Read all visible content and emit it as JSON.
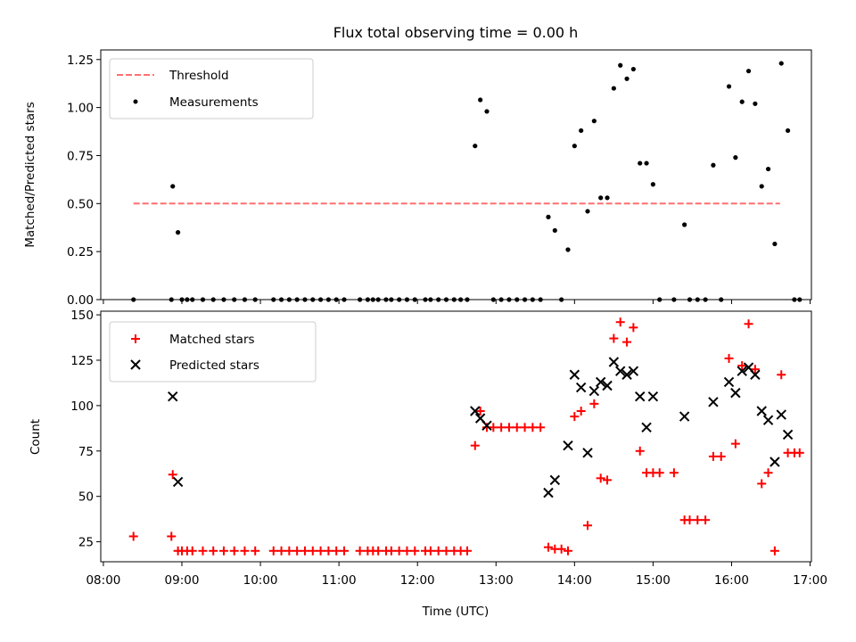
{
  "chart_data": [
    {
      "type": "scatter",
      "title": "Flux total observing time = 0.00 h",
      "ylabel": "Matched/Predicted stars",
      "xlabel": "",
      "xlim": [
        "08:00",
        "17:00"
      ],
      "ylim": [
        0,
        1.3
      ],
      "yticks": [
        "0.00",
        "0.25",
        "0.50",
        "0.75",
        "1.00",
        "1.25"
      ],
      "legend": "top-left",
      "threshold": {
        "name": "Threshold",
        "value": 0.5,
        "x_start": "08:23",
        "x_end": "16:37",
        "color": "#ff6f6f"
      },
      "series": [
        {
          "name": "Measurements",
          "color": "#000000",
          "points": [
            [
              "08:23",
              0
            ],
            [
              "08:52",
              0
            ],
            [
              "08:53",
              0.59
            ],
            [
              "08:57",
              0.35
            ],
            [
              "09:00",
              0
            ],
            [
              "09:04",
              0
            ],
            [
              "09:08",
              0
            ],
            [
              "09:16",
              0
            ],
            [
              "09:24",
              0
            ],
            [
              "09:32",
              0
            ],
            [
              "09:40",
              0
            ],
            [
              "09:48",
              0
            ],
            [
              "09:56",
              0
            ],
            [
              "10:10",
              0
            ],
            [
              "10:16",
              0
            ],
            [
              "10:22",
              0
            ],
            [
              "10:28",
              0
            ],
            [
              "10:34",
              0
            ],
            [
              "10:40",
              0
            ],
            [
              "10:46",
              0
            ],
            [
              "10:52",
              0
            ],
            [
              "10:58",
              0
            ],
            [
              "11:04",
              0
            ],
            [
              "11:16",
              0
            ],
            [
              "11:22",
              0
            ],
            [
              "11:26",
              0
            ],
            [
              "11:30",
              0
            ],
            [
              "11:36",
              0
            ],
            [
              "11:40",
              0
            ],
            [
              "11:46",
              0
            ],
            [
              "11:52",
              0
            ],
            [
              "11:58",
              0
            ],
            [
              "12:06",
              0
            ],
            [
              "12:10",
              0
            ],
            [
              "12:16",
              0
            ],
            [
              "12:22",
              0
            ],
            [
              "12:28",
              0
            ],
            [
              "12:33",
              0
            ],
            [
              "12:38",
              0
            ],
            [
              "12:44",
              0.8
            ],
            [
              "12:48",
              1.04
            ],
            [
              "12:53",
              0.98
            ],
            [
              "12:58",
              0
            ],
            [
              "13:04",
              0
            ],
            [
              "13:10",
              0
            ],
            [
              "13:16",
              0
            ],
            [
              "13:22",
              0
            ],
            [
              "13:28",
              0
            ],
            [
              "13:34",
              0
            ],
            [
              "13:40",
              0.43
            ],
            [
              "13:45",
              0.36
            ],
            [
              "13:50",
              0
            ],
            [
              "13:55",
              0.26
            ],
            [
              "14:00",
              0.8
            ],
            [
              "14:05",
              0.88
            ],
            [
              "14:10",
              0.46
            ],
            [
              "14:15",
              0.93
            ],
            [
              "14:20",
              0.53
            ],
            [
              "14:25",
              0.53
            ],
            [
              "14:30",
              1.1
            ],
            [
              "14:35",
              1.22
            ],
            [
              "14:40",
              1.15
            ],
            [
              "14:45",
              1.2
            ],
            [
              "14:50",
              0.71
            ],
            [
              "14:55",
              0.71
            ],
            [
              "15:00",
              0.6
            ],
            [
              "15:05",
              0
            ],
            [
              "15:16",
              0
            ],
            [
              "15:24",
              0.39
            ],
            [
              "15:28",
              0
            ],
            [
              "15:34",
              0
            ],
            [
              "15:40",
              0
            ],
            [
              "15:46",
              0.7
            ],
            [
              "15:52",
              0
            ],
            [
              "15:58",
              1.11
            ],
            [
              "16:03",
              0.74
            ],
            [
              "16:08",
              1.03
            ],
            [
              "16:13",
              1.19
            ],
            [
              "16:18",
              1.02
            ],
            [
              "16:23",
              0.59
            ],
            [
              "16:28",
              0.68
            ],
            [
              "16:33",
              0.29
            ],
            [
              "16:38",
              1.23
            ],
            [
              "16:43",
              0.88
            ],
            [
              "16:48",
              0
            ],
            [
              "16:52",
              0
            ]
          ]
        }
      ]
    },
    {
      "type": "scatter",
      "title": "",
      "ylabel": "Count",
      "xlabel": "Time (UTC)",
      "xlim": [
        "08:00",
        "17:00"
      ],
      "xticks": [
        "08:00",
        "09:00",
        "10:00",
        "11:00",
        "12:00",
        "13:00",
        "14:00",
        "15:00",
        "16:00",
        "17:00"
      ],
      "ylim": [
        14,
        152
      ],
      "yticks": [
        "25",
        "50",
        "75",
        "100",
        "125",
        "150"
      ],
      "legend": "top-left",
      "series": [
        {
          "name": "Matched stars",
          "marker": "plus",
          "color": "#ff0000",
          "points": [
            [
              "08:23",
              28
            ],
            [
              "08:52",
              28
            ],
            [
              "08:53",
              62
            ],
            [
              "08:57",
              20
            ],
            [
              "09:00",
              20
            ],
            [
              "09:04",
              20
            ],
            [
              "09:08",
              20
            ],
            [
              "09:16",
              20
            ],
            [
              "09:24",
              20
            ],
            [
              "09:32",
              20
            ],
            [
              "09:40",
              20
            ],
            [
              "09:48",
              20
            ],
            [
              "09:56",
              20
            ],
            [
              "10:10",
              20
            ],
            [
              "10:16",
              20
            ],
            [
              "10:22",
              20
            ],
            [
              "10:28",
              20
            ],
            [
              "10:34",
              20
            ],
            [
              "10:40",
              20
            ],
            [
              "10:46",
              20
            ],
            [
              "10:52",
              20
            ],
            [
              "10:58",
              20
            ],
            [
              "11:04",
              20
            ],
            [
              "11:16",
              20
            ],
            [
              "11:22",
              20
            ],
            [
              "11:26",
              20
            ],
            [
              "11:30",
              20
            ],
            [
              "11:36",
              20
            ],
            [
              "11:40",
              20
            ],
            [
              "11:46",
              20
            ],
            [
              "11:52",
              20
            ],
            [
              "11:58",
              20
            ],
            [
              "12:06",
              20
            ],
            [
              "12:10",
              20
            ],
            [
              "12:16",
              20
            ],
            [
              "12:22",
              20
            ],
            [
              "12:28",
              20
            ],
            [
              "12:33",
              20
            ],
            [
              "12:38",
              20
            ],
            [
              "12:44",
              78
            ],
            [
              "12:48",
              97
            ],
            [
              "12:53",
              88
            ],
            [
              "12:58",
              88
            ],
            [
              "13:04",
              88
            ],
            [
              "13:10",
              88
            ],
            [
              "13:16",
              88
            ],
            [
              "13:22",
              88
            ],
            [
              "13:28",
              88
            ],
            [
              "13:34",
              88
            ],
            [
              "13:40",
              22
            ],
            [
              "13:45",
              21
            ],
            [
              "13:50",
              21
            ],
            [
              "13:55",
              20
            ],
            [
              "14:00",
              94
            ],
            [
              "14:05",
              97
            ],
            [
              "14:10",
              34
            ],
            [
              "14:15",
              101
            ],
            [
              "14:20",
              60
            ],
            [
              "14:25",
              59
            ],
            [
              "14:30",
              137
            ],
            [
              "14:35",
              146
            ],
            [
              "14:40",
              135
            ],
            [
              "14:45",
              143
            ],
            [
              "14:50",
              75
            ],
            [
              "14:55",
              63
            ],
            [
              "15:00",
              63
            ],
            [
              "15:05",
              63
            ],
            [
              "15:16",
              63
            ],
            [
              "15:24",
              37
            ],
            [
              "15:28",
              37
            ],
            [
              "15:34",
              37
            ],
            [
              "15:40",
              37
            ],
            [
              "15:46",
              72
            ],
            [
              "15:52",
              72
            ],
            [
              "15:58",
              126
            ],
            [
              "16:03",
              79
            ],
            [
              "16:08",
              122
            ],
            [
              "16:13",
              145
            ],
            [
              "16:18",
              120
            ],
            [
              "16:23",
              57
            ],
            [
              "16:28",
              63
            ],
            [
              "16:33",
              20
            ],
            [
              "16:38",
              117
            ],
            [
              "16:43",
              74
            ],
            [
              "16:48",
              74
            ],
            [
              "16:52",
              74
            ]
          ]
        },
        {
          "name": "Predicted stars",
          "marker": "x",
          "color": "#000000",
          "points": [
            [
              "08:53",
              105
            ],
            [
              "08:57",
              58
            ],
            [
              "12:44",
              97
            ],
            [
              "12:48",
              93
            ],
            [
              "12:53",
              89
            ],
            [
              "13:40",
              52
            ],
            [
              "13:45",
              59
            ],
            [
              "13:55",
              78
            ],
            [
              "14:00",
              117
            ],
            [
              "14:05",
              110
            ],
            [
              "14:10",
              74
            ],
            [
              "14:15",
              108
            ],
            [
              "14:20",
              113
            ],
            [
              "14:25",
              111
            ],
            [
              "14:30",
              124
            ],
            [
              "14:35",
              119
            ],
            [
              "14:40",
              117
            ],
            [
              "14:45",
              119
            ],
            [
              "14:50",
              105
            ],
            [
              "14:55",
              88
            ],
            [
              "15:00",
              105
            ],
            [
              "15:24",
              94
            ],
            [
              "15:46",
              102
            ],
            [
              "15:58",
              113
            ],
            [
              "16:03",
              107
            ],
            [
              "16:08",
              119
            ],
            [
              "16:13",
              121
            ],
            [
              "16:18",
              117
            ],
            [
              "16:23",
              97
            ],
            [
              "16:28",
              92
            ],
            [
              "16:33",
              69
            ],
            [
              "16:38",
              95
            ],
            [
              "16:43",
              84
            ]
          ]
        }
      ]
    }
  ]
}
